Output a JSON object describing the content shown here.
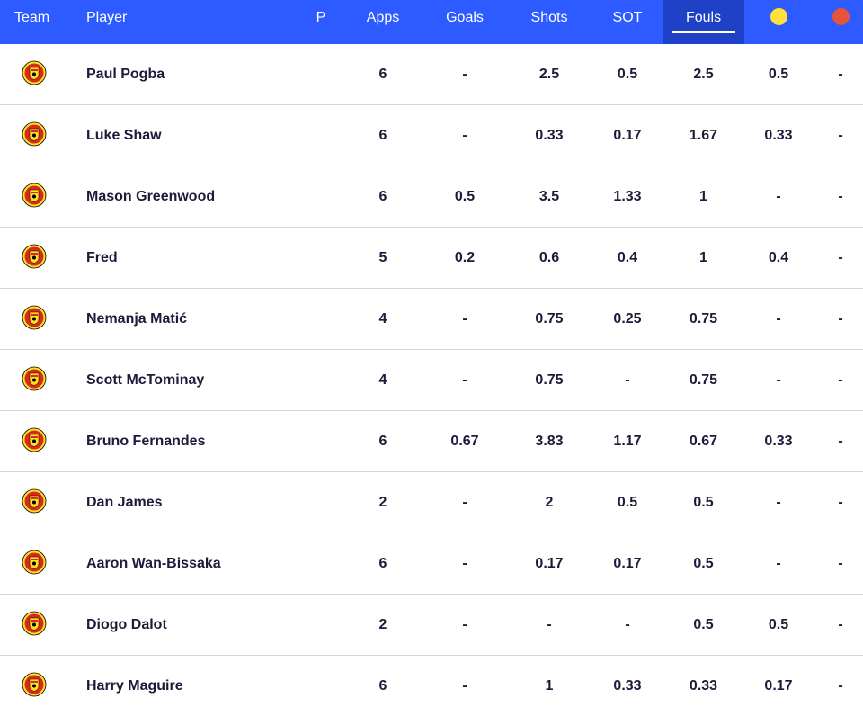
{
  "header": {
    "team": "Team",
    "player": "Player",
    "p": "P",
    "apps": "Apps",
    "goals": "Goals",
    "shots": "Shots",
    "sot": "SOT",
    "fouls": "Fouls",
    "yellow_card_icon": "yellow-card-icon",
    "red_card_icon": "red-card-icon",
    "active_column": "Fouls"
  },
  "colors": {
    "header_bg": "#2d5bff",
    "active_header_bg": "#1e41c8",
    "yellow_card": "#ffe13a",
    "red_card": "#e8533c",
    "crest_red": "#da291c",
    "crest_yellow": "#fbe122"
  },
  "rows": [
    {
      "player": "Paul Pogba",
      "apps": "6",
      "goals": "-",
      "shots": "2.5",
      "sot": "0.5",
      "fouls": "2.5",
      "yellow": "0.5",
      "red": "-"
    },
    {
      "player": "Luke Shaw",
      "apps": "6",
      "goals": "-",
      "shots": "0.33",
      "sot": "0.17",
      "fouls": "1.67",
      "yellow": "0.33",
      "red": "-"
    },
    {
      "player": "Mason Greenwood",
      "apps": "6",
      "goals": "0.5",
      "shots": "3.5",
      "sot": "1.33",
      "fouls": "1",
      "yellow": "-",
      "red": "-"
    },
    {
      "player": "Fred",
      "apps": "5",
      "goals": "0.2",
      "shots": "0.6",
      "sot": "0.4",
      "fouls": "1",
      "yellow": "0.4",
      "red": "-"
    },
    {
      "player": "Nemanja Matić",
      "apps": "4",
      "goals": "-",
      "shots": "0.75",
      "sot": "0.25",
      "fouls": "0.75",
      "yellow": "-",
      "red": "-"
    },
    {
      "player": "Scott McTominay",
      "apps": "4",
      "goals": "-",
      "shots": "0.75",
      "sot": "-",
      "fouls": "0.75",
      "yellow": "-",
      "red": "-"
    },
    {
      "player": "Bruno Fernandes",
      "apps": "6",
      "goals": "0.67",
      "shots": "3.83",
      "sot": "1.17",
      "fouls": "0.67",
      "yellow": "0.33",
      "red": "-"
    },
    {
      "player": "Dan James",
      "apps": "2",
      "goals": "-",
      "shots": "2",
      "sot": "0.5",
      "fouls": "0.5",
      "yellow": "-",
      "red": "-"
    },
    {
      "player": "Aaron Wan-Bissaka",
      "apps": "6",
      "goals": "-",
      "shots": "0.17",
      "sot": "0.17",
      "fouls": "0.5",
      "yellow": "-",
      "red": "-"
    },
    {
      "player": "Diogo Dalot",
      "apps": "2",
      "goals": "-",
      "shots": "-",
      "sot": "-",
      "fouls": "0.5",
      "yellow": "0.5",
      "red": "-"
    },
    {
      "player": "Harry Maguire",
      "apps": "6",
      "goals": "-",
      "shots": "1",
      "sot": "0.33",
      "fouls": "0.33",
      "yellow": "0.17",
      "red": "-"
    }
  ]
}
